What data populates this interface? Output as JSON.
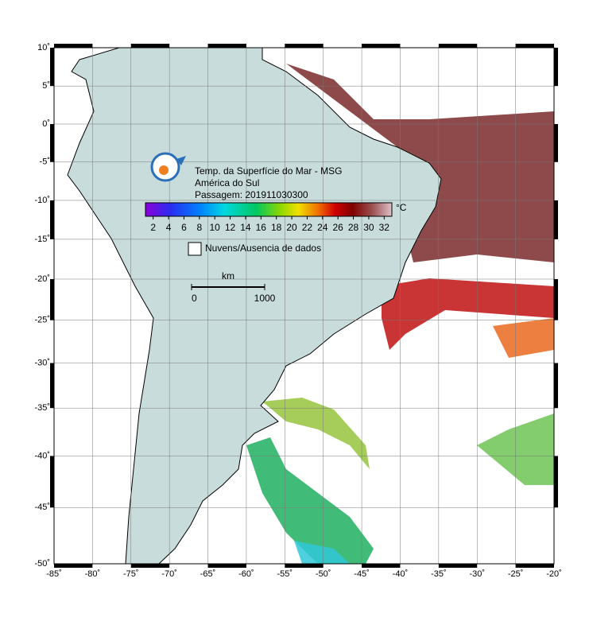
{
  "map": {
    "lon_lim": [
      -85,
      -20
    ],
    "lat_lim": [
      -50,
      10
    ],
    "lon_ticks": [
      {
        "value": -85,
        "label": "-85˚"
      },
      {
        "value": -80,
        "label": "-80˚"
      },
      {
        "value": -75,
        "label": "-75˚"
      },
      {
        "value": -70,
        "label": "-70˚"
      },
      {
        "value": -65,
        "label": "-65˚"
      },
      {
        "value": -60,
        "label": "-60˚"
      },
      {
        "value": -55,
        "label": "-55˚"
      },
      {
        "value": -50,
        "label": "-50˚"
      },
      {
        "value": -45,
        "label": "-45˚"
      },
      {
        "value": -40,
        "label": "-40˚"
      },
      {
        "value": -35,
        "label": "-35˚"
      },
      {
        "value": -30,
        "label": "-30˚"
      },
      {
        "value": -25,
        "label": "-25˚"
      },
      {
        "value": -20,
        "label": "-20˚"
      }
    ],
    "lat_ticks": [
      {
        "value": 10,
        "label": "10˚"
      },
      {
        "value": 5,
        "label": "5˚"
      },
      {
        "value": 0,
        "label": "0˚"
      },
      {
        "value": -5,
        "label": "-5˚"
      },
      {
        "value": -10,
        "label": "-10˚"
      },
      {
        "value": -15,
        "label": "-15˚"
      },
      {
        "value": -20,
        "label": "-20˚"
      },
      {
        "value": -25,
        "label": "-25˚"
      },
      {
        "value": -30,
        "label": "-30˚"
      },
      {
        "value": -35,
        "label": "-35˚"
      },
      {
        "value": -40,
        "label": "-40˚"
      },
      {
        "value": -45,
        "label": "-45˚"
      },
      {
        "value": -50,
        "label": "-50˚"
      }
    ],
    "title_lines": [
      "Temp. da Superfície do Mar - MSG",
      "América do Sul",
      "Passagem: 201911030300"
    ],
    "colorbar": {
      "lim": [
        1,
        33
      ],
      "ticks": [
        2,
        4,
        6,
        8,
        10,
        12,
        14,
        16,
        18,
        20,
        22,
        24,
        26,
        28,
        30,
        32
      ],
      "unit": "°C"
    },
    "legend": "Nuvens/Ausencia de dados",
    "scale": {
      "unit": "km",
      "ticks": [
        0,
        1000
      ]
    }
  }
}
